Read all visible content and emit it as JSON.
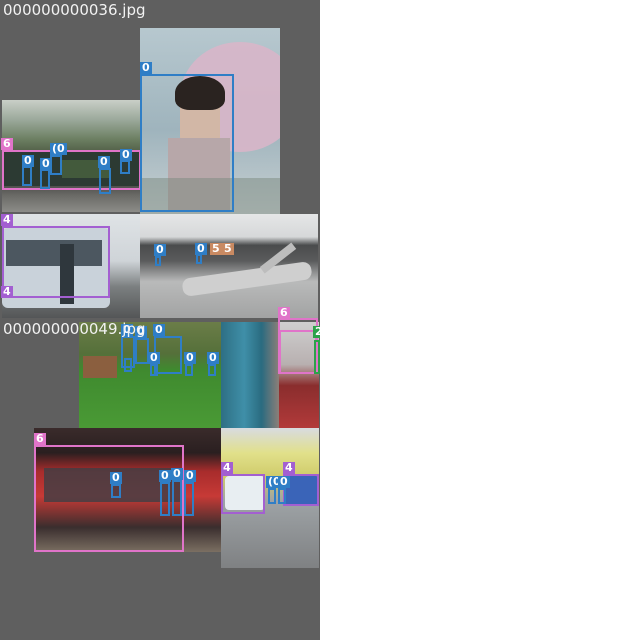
{
  "mosaics": [
    {
      "filename": "000000000036.jpg"
    },
    {
      "filename": "000000000049.jpg"
    }
  ],
  "labels": {
    "person": "0",
    "bus": "4",
    "train": "6",
    "car": "2",
    "airplane": "5",
    "person_pair": "(0"
  },
  "colors": {
    "person": "#2f7ec6",
    "bus": "#a35fd1",
    "train": "#e074c9",
    "car": "#2ca24a",
    "background": "#5f5f5f"
  }
}
